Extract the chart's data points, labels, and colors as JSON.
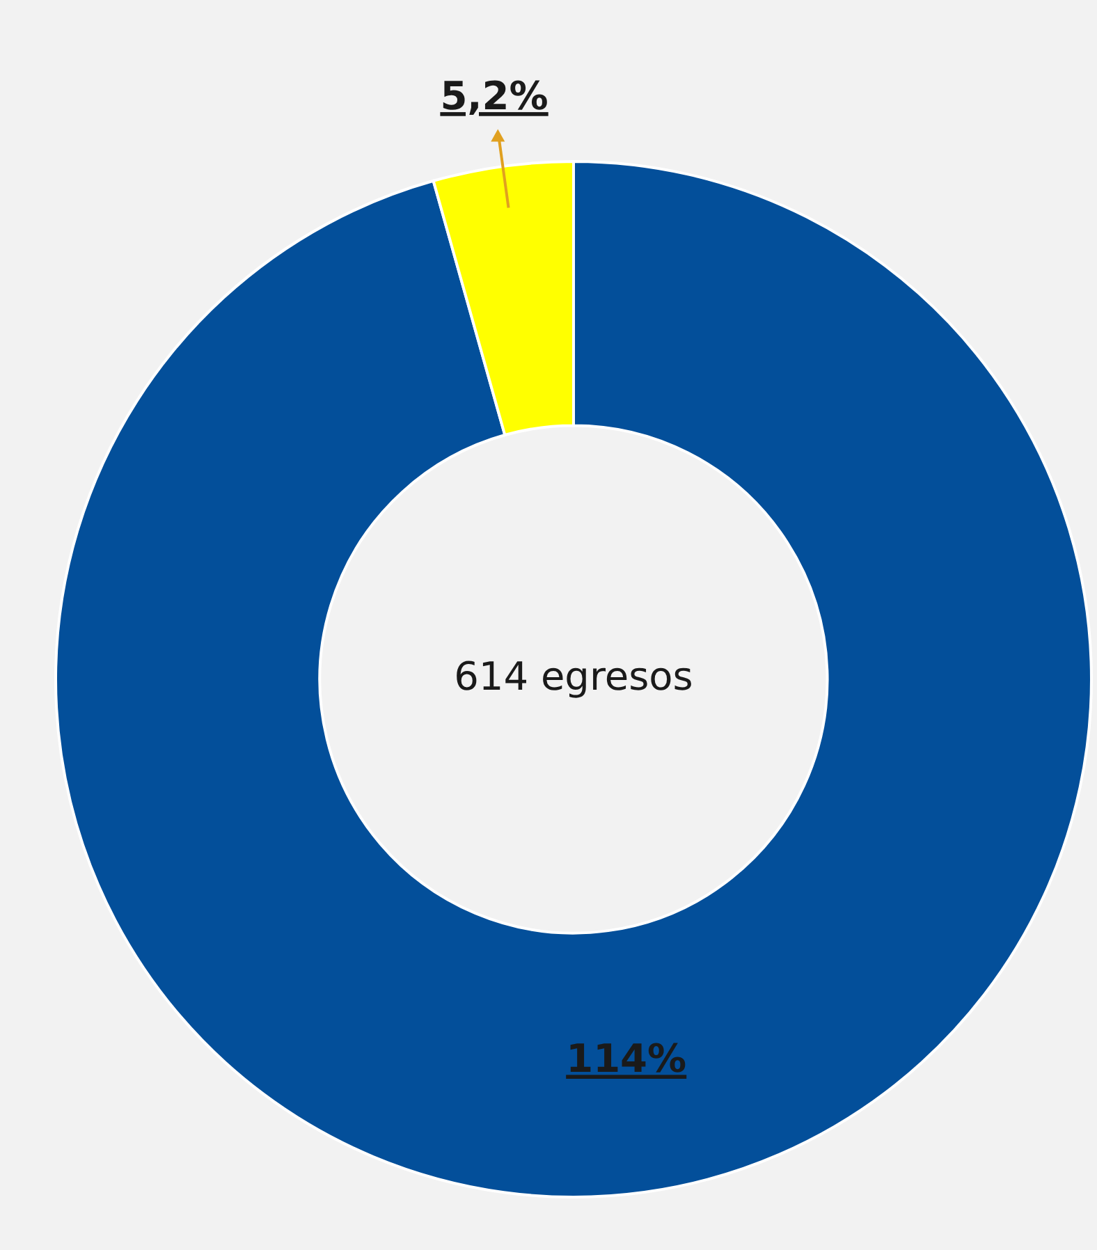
{
  "chart_data": {
    "type": "donut",
    "categories": [
      null,
      null
    ],
    "values": [
      114,
      5.2
    ],
    "colors": [
      "#034f9a",
      "#ffff00"
    ],
    "value_labels": [
      "114%",
      "5,2%"
    ],
    "annotations": [
      "614 egresos"
    ]
  }
}
